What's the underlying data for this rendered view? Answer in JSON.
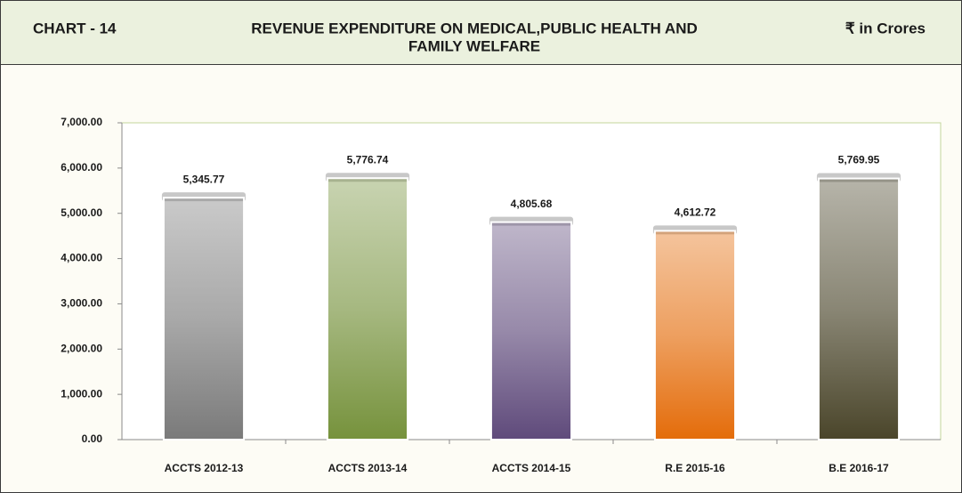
{
  "chart_data": {
    "type": "bar",
    "chart_label": "CHART - 14",
    "title": [
      "REVENUE EXPENDITURE ON MEDICAL,PUBLIC HEALTH AND",
      "FAMILY WELFARE"
    ],
    "unit": "₹ in Crores",
    "categories": [
      "ACCTS 2012-13",
      "ACCTS 2013-14",
      "ACCTS 2014-15",
      "R.E 2015-16",
      "B.E 2016-17"
    ],
    "values": [
      5345.77,
      5776.74,
      4805.68,
      4612.72,
      5769.95
    ],
    "value_labels": [
      "5,345.77",
      "5,776.74",
      "4,805.68",
      "4,612.72",
      "5,769.95"
    ],
    "colors": [
      "#7a7a7a",
      "#76923c",
      "#5f4a7b",
      "#e46c0a",
      "#4a452a"
    ],
    "ylim": [
      0,
      7000
    ],
    "yticks": [
      {
        "value": 0,
        "label": "0.00"
      },
      {
        "value": 1000,
        "label": "1,000.00"
      },
      {
        "value": 2000,
        "label": "2,000.00"
      },
      {
        "value": 3000,
        "label": "3,000.00"
      },
      {
        "value": 4000,
        "label": "4,000.00"
      },
      {
        "value": 5000,
        "label": "5,000.00"
      },
      {
        "value": 6000,
        "label": "6,000.00"
      },
      {
        "value": 7000,
        "label": "7,000.00"
      }
    ],
    "grid": false
  }
}
